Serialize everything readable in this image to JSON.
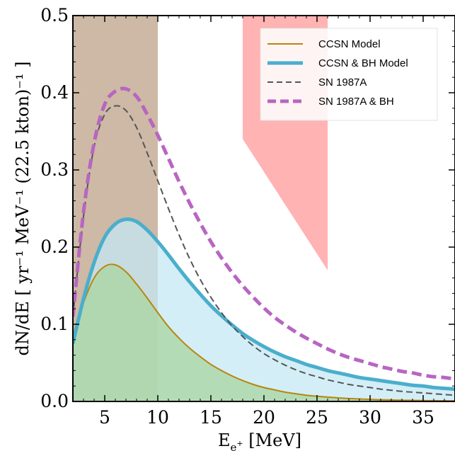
{
  "chart_data": {
    "type": "line",
    "xlabel": "E",
    "xlabel_sub": "e",
    "xlabel_sup": "+",
    "xlabel_unit": " [MeV]",
    "ylabel": "dN/dE [ yr⁻¹ MeV⁻¹ (22.5 kton)⁻¹ ]",
    "xlim": [
      2,
      38
    ],
    "ylim": [
      0,
      0.5
    ],
    "xticks": [
      5,
      10,
      15,
      20,
      25,
      30,
      35
    ],
    "yticks": [
      0.0,
      0.1,
      0.2,
      0.3,
      0.4,
      0.5
    ],
    "xtick_labels": [
      "5",
      "10",
      "15",
      "20",
      "25",
      "30",
      "35"
    ],
    "ytick_labels": [
      "0.0",
      "0.1",
      "0.2",
      "0.3",
      "0.4",
      "0.5"
    ],
    "legend_position": "top-right",
    "bands": [
      {
        "x_range": [
          2,
          10
        ],
        "y_range": [
          0,
          0.5
        ],
        "color": "#cdb9a5"
      }
    ],
    "regions": [
      {
        "polygon": [
          [
            18,
            0.5
          ],
          [
            26,
            0.5
          ],
          [
            26,
            0.17
          ],
          [
            18,
            0.34
          ]
        ],
        "color": "#ffb3b3"
      }
    ],
    "x": [
      2,
      3,
      4,
      5,
      6,
      7,
      8,
      9,
      10,
      11,
      12,
      13,
      14,
      15,
      16,
      17,
      18,
      19,
      20,
      21,
      22,
      23,
      24,
      25,
      26,
      27,
      28,
      29,
      30,
      31,
      32,
      33,
      34,
      35,
      36,
      37,
      38
    ],
    "series": [
      {
        "name": "CCSN Model",
        "color": "#b8860b",
        "style": "solid",
        "width": 2,
        "fill": "#a8d5a0",
        "values": [
          0.085,
          0.128,
          0.16,
          0.175,
          0.177,
          0.168,
          0.152,
          0.134,
          0.115,
          0.097,
          0.082,
          0.069,
          0.058,
          0.048,
          0.04,
          0.033,
          0.027,
          0.022,
          0.018,
          0.015,
          0.012,
          0.01,
          0.008,
          0.0068,
          0.0056,
          0.0046,
          0.0038,
          0.0032,
          0.0027,
          0.0022,
          0.0019,
          0.0016,
          0.0014,
          0.0012,
          0.001,
          0.0009,
          0.0008
        ]
      },
      {
        "name": "CCSN & BH Model",
        "color": "#4aaecc",
        "style": "solid",
        "width": 5,
        "fill": "#c4e8f4",
        "values": [
          0.075,
          0.133,
          0.18,
          0.213,
          0.23,
          0.236,
          0.233,
          0.222,
          0.207,
          0.19,
          0.172,
          0.155,
          0.139,
          0.124,
          0.111,
          0.099,
          0.088,
          0.079,
          0.071,
          0.064,
          0.058,
          0.053,
          0.048,
          0.044,
          0.04,
          0.037,
          0.034,
          0.031,
          0.029,
          0.027,
          0.025,
          0.023,
          0.021,
          0.02,
          0.018,
          0.017,
          0.016
        ]
      },
      {
        "name": "SN 1987A",
        "color": "#555555",
        "style": "dashed",
        "width": 2,
        "values": [
          0.11,
          0.24,
          0.33,
          0.372,
          0.383,
          0.377,
          0.355,
          0.322,
          0.286,
          0.25,
          0.216,
          0.185,
          0.158,
          0.135,
          0.115,
          0.098,
          0.084,
          0.072,
          0.062,
          0.054,
          0.047,
          0.041,
          0.036,
          0.032,
          0.028,
          0.025,
          0.022,
          0.02,
          0.018,
          0.016,
          0.0145,
          0.013,
          0.012,
          0.011,
          0.01,
          0.009,
          0.008
        ]
      },
      {
        "name": "SN 1987A & BH",
        "color": "#b865c2",
        "style": "dashed",
        "width": 5,
        "values": [
          0.11,
          0.245,
          0.335,
          0.385,
          0.402,
          0.405,
          0.395,
          0.372,
          0.345,
          0.315,
          0.285,
          0.257,
          0.231,
          0.207,
          0.186,
          0.167,
          0.15,
          0.135,
          0.121,
          0.109,
          0.099,
          0.09,
          0.082,
          0.075,
          0.068,
          0.062,
          0.057,
          0.053,
          0.049,
          0.045,
          0.042,
          0.039,
          0.037,
          0.034,
          0.032,
          0.031,
          0.029
        ]
      }
    ]
  }
}
